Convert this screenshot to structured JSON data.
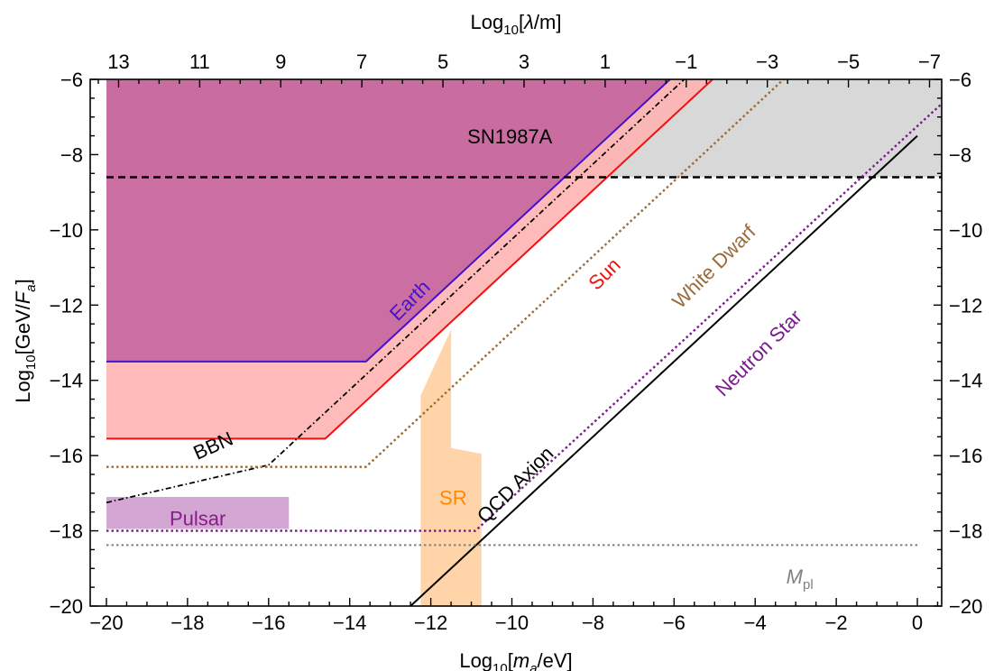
{
  "chart_data": {
    "type": "area",
    "xlabel": {
      "pre": "Log",
      "sub": "10",
      "mid": "[",
      "var": "m",
      "varsub": "a",
      "post": "/eV]"
    },
    "ylabel": {
      "pre": "Log",
      "sub": "10",
      "mid": "[GeV/",
      "var": "F",
      "varsub": "a",
      "post": "]"
    },
    "x2label": {
      "pre": "Log",
      "sub": "10",
      "mid": "[",
      "var": "λ",
      "post": "/m]"
    },
    "xlim": [
      -20.4,
      0.6
    ],
    "ylim": [
      -20,
      -6
    ],
    "x_ticks": [
      -20,
      -18,
      -16,
      -14,
      -12,
      -10,
      -8,
      -6,
      -4,
      -2,
      0
    ],
    "x_tick_labels": [
      "−20",
      "−18",
      "−16",
      "−14",
      "−12",
      "−10",
      "−8",
      "−6",
      "−4",
      "−2",
      "0"
    ],
    "y_ticks": [
      -20,
      -18,
      -16,
      -14,
      -12,
      -10,
      -8,
      -6
    ],
    "y_tick_labels": [
      "−20",
      "−18",
      "−16",
      "−14",
      "−12",
      "−10",
      "−8",
      "−6"
    ],
    "y_tick_labels_right": [
      "−20",
      "−18",
      "−16",
      "−14",
      "−12",
      "−10",
      "−8",
      "−6"
    ],
    "lambda_ticks": [
      13,
      11,
      9,
      7,
      5,
      3,
      1,
      -1,
      -3,
      -5,
      -7
    ],
    "lambda_tick_labels": [
      "13",
      "11",
      "9",
      "7",
      "5",
      "3",
      "1",
      "−1",
      "−3",
      "−5",
      "−7"
    ],
    "lambda_offset": -6.7,
    "colors": {
      "sun": "#ee1111",
      "sun_fill": "#ffb3b3",
      "earth": "#4411cc",
      "earth_fill": "#a0308c",
      "sn_fill": "#c8c8c8",
      "white_dwarf": "#9a6b3a",
      "neutron_star": "#7a1a8c",
      "pulsar_fill": "#c890c8",
      "pulsar_text": "#8a1a8a",
      "sr_fill": "#ffcc99",
      "sr_text": "#ff8800",
      "qcd": "#000000",
      "mpl": "#808080"
    },
    "regions": [
      {
        "key": "sn",
        "label": "SN1987A",
        "boundary_y": -8.6,
        "points": [
          [
            -20,
            -6
          ],
          [
            0.6,
            -6
          ],
          [
            0.6,
            -8.6
          ],
          [
            -20,
            -8.6
          ]
        ]
      },
      {
        "key": "sun",
        "label": "Sun",
        "points": [
          [
            -20,
            -6
          ],
          [
            -5.05,
            -6
          ],
          [
            -14.6,
            -15.55
          ],
          [
            -20,
            -15.55
          ]
        ]
      },
      {
        "key": "earth",
        "label": "Earth",
        "points": [
          [
            -20,
            -6
          ],
          [
            -6.1,
            -6
          ],
          [
            -13.6,
            -13.5
          ],
          [
            -20,
            -13.5
          ]
        ]
      },
      {
        "key": "pulsar",
        "label": "Pulsar",
        "points": [
          [
            -20,
            -17.1
          ],
          [
            -15.5,
            -17.1
          ],
          [
            -15.5,
            -17.95
          ],
          [
            -20,
            -17.95
          ]
        ]
      },
      {
        "key": "sr",
        "label": "SR",
        "points": [
          [
            -12.25,
            -20
          ],
          [
            -12.25,
            -14.4
          ],
          [
            -11.5,
            -12.65
          ],
          [
            -11.5,
            -15.8
          ],
          [
            -10.75,
            -15.95
          ],
          [
            -10.75,
            -20
          ]
        ]
      }
    ],
    "lines": [
      {
        "key": "sun",
        "style": "solid",
        "points": [
          [
            -20,
            -15.55
          ],
          [
            -14.6,
            -15.55
          ],
          [
            -5.05,
            -6
          ]
        ]
      },
      {
        "key": "earth",
        "style": "solid",
        "points": [
          [
            -20,
            -13.5
          ],
          [
            -13.6,
            -13.5
          ],
          [
            -6.1,
            -6
          ]
        ]
      },
      {
        "key": "sn",
        "style": "dashed",
        "points": [
          [
            -20,
            -8.6
          ],
          [
            0.6,
            -8.6
          ]
        ]
      },
      {
        "key": "bbn",
        "label": "BBN",
        "style": "dotdash",
        "points": [
          [
            -20,
            -17.25
          ],
          [
            -16,
            -16.25
          ],
          [
            -5.75,
            -6
          ]
        ]
      },
      {
        "key": "white_dwarf",
        "label": "White Dwarf",
        "style": "dotted",
        "points": [
          [
            -20,
            -16.3
          ],
          [
            -13.6,
            -16.3
          ],
          [
            -3.3,
            -6
          ]
        ]
      },
      {
        "key": "neutron_star",
        "label": "Neutron Star",
        "style": "dotted",
        "points": [
          [
            -20,
            -18
          ],
          [
            -10.9,
            -18
          ],
          [
            0.6,
            -6.65
          ]
        ]
      },
      {
        "key": "qcd",
        "label": "QCD Axion",
        "style": "solid",
        "points": [
          [
            -12.5,
            -20
          ],
          [
            0,
            -7.5
          ]
        ]
      },
      {
        "key": "mpl",
        "label": "M",
        "label_sub": "pl",
        "style": "dotted",
        "points": [
          [
            -20,
            -18.38
          ],
          [
            0,
            -18.38
          ]
        ]
      }
    ]
  }
}
